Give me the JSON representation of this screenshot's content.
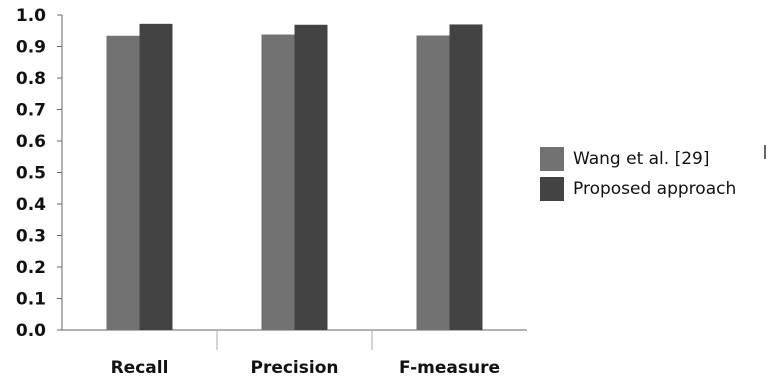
{
  "chart_data": {
    "type": "bar",
    "categories": [
      "Recall",
      "Precision",
      "F-measure"
    ],
    "series": [
      {
        "name": "Wang et al. [29]",
        "values": [
          0.934,
          0.938,
          0.935
        ],
        "color": "#727272"
      },
      {
        "name": "Proposed approach",
        "values": [
          0.972,
          0.969,
          0.97
        ],
        "color": "#434343"
      }
    ],
    "ylim": [
      0.0,
      1.0
    ],
    "yticks": [
      "0.0",
      "0.1",
      "0.2",
      "0.3",
      "0.4",
      "0.5",
      "0.6",
      "0.7",
      "0.8",
      "0.9",
      "1.0"
    ],
    "title": "",
    "xlabel": "",
    "ylabel": "",
    "grid": false,
    "legend_position": "right"
  }
}
